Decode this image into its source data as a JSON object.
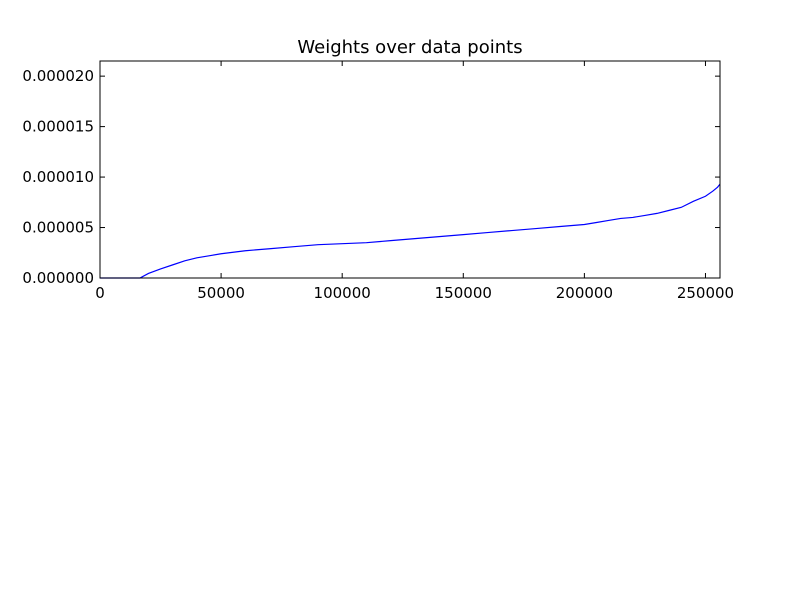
{
  "chart_data": {
    "type": "line",
    "title": "Weights over data points",
    "xlabel": "",
    "ylabel": "",
    "xlim": [
      0,
      256000
    ],
    "ylim": [
      0,
      2.15e-05
    ],
    "x_ticks": [
      0,
      50000,
      100000,
      150000,
      200000,
      250000
    ],
    "x_tick_labels": [
      "0",
      "50000",
      "100000",
      "150000",
      "200000",
      "250000"
    ],
    "y_ticks": [
      0,
      5e-06,
      1e-05,
      1.5e-05,
      2e-05
    ],
    "y_tick_labels": [
      "0.000000",
      "0.000005",
      "0.000010",
      "0.000015",
      "0.000020"
    ],
    "grid": false,
    "legend": false,
    "series": [
      {
        "color": "#0000ff",
        "x": [
          0,
          16500,
          20000,
          25000,
          30000,
          35000,
          40000,
          45000,
          50000,
          60000,
          70000,
          80000,
          90000,
          100000,
          110000,
          120000,
          130000,
          140000,
          150000,
          160000,
          170000,
          180000,
          190000,
          200000,
          205000,
          210000,
          215000,
          220000,
          225000,
          230000,
          235000,
          240000,
          245000,
          250000,
          253000,
          255000,
          256000
        ],
        "y": [
          0.0,
          0.0,
          4.5e-07,
          9e-07,
          1.3e-06,
          1.7e-06,
          2e-06,
          2.2e-06,
          2.4e-06,
          2.7e-06,
          2.9e-06,
          3.1e-06,
          3.3e-06,
          3.4e-06,
          3.5e-06,
          3.7e-06,
          3.9e-06,
          4.1e-06,
          4.3e-06,
          4.5e-06,
          4.7e-06,
          4.9e-06,
          5.1e-06,
          5.3e-06,
          5.5e-06,
          5.7e-06,
          5.9e-06,
          6e-06,
          6.2e-06,
          6.4e-06,
          6.7e-06,
          7e-06,
          7.6e-06,
          8.1e-06,
          8.6e-06,
          9e-06,
          9.3e-06
        ]
      }
    ]
  }
}
